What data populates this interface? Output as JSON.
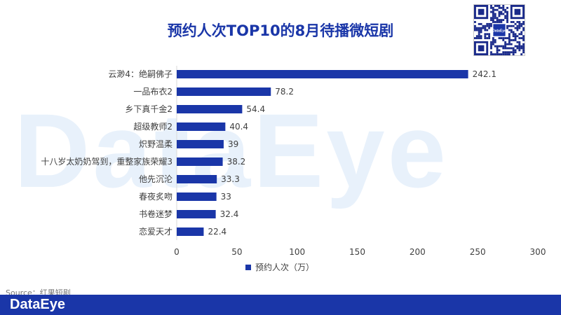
{
  "header": {
    "title": "预约人次TOP10的8月待播微短剧"
  },
  "watermark": {
    "text": "DataEye"
  },
  "qr": {
    "center_label": "DataEye"
  },
  "source": {
    "text": "Source：红果短剧"
  },
  "footer": {
    "logo": "DataEye"
  },
  "colors": {
    "bar": "#1a36a8",
    "title": "#1a36a8",
    "footer": "#1a36a8"
  },
  "chart_data": {
    "type": "bar",
    "orientation": "horizontal",
    "categories": [
      "云渺4：绝嗣佛子",
      "一品布衣2",
      "乡下真千金2",
      "超级教师2",
      "炽野温柔",
      "十八岁太奶奶驾到，重整家族荣耀3",
      "他先沉沦",
      "春夜炙吻",
      "书卷迷梦",
      "恋爱天才"
    ],
    "series": [
      {
        "name": "预约人次（万）",
        "values": [
          242.1,
          78.2,
          54.4,
          40.4,
          39,
          38.2,
          33.3,
          33,
          32.4,
          22.4
        ],
        "labels": [
          "242.1",
          "78.2",
          "54.4",
          "40.4",
          "39",
          "38.2",
          "33.3",
          "33",
          "32.4",
          "22.4"
        ]
      }
    ],
    "x_ticks": [
      "0",
      "50",
      "100",
      "150",
      "200",
      "250",
      "300"
    ],
    "xlim": [
      0,
      300
    ],
    "grid": false,
    "legend": "bottom"
  }
}
